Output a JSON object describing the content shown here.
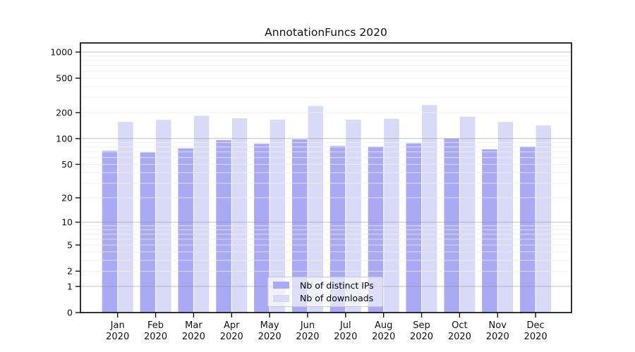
{
  "chart_data": {
    "type": "bar",
    "title": "AnnotationFuncs 2020",
    "x_months": [
      "Jan",
      "Feb",
      "Mar",
      "Apr",
      "May",
      "Jun",
      "Jul",
      "Aug",
      "Sep",
      "Oct",
      "Nov",
      "Dec"
    ],
    "x_year": "2020",
    "series": [
      {
        "name": "Nb of distinct IPs",
        "color": "#a9a9f4",
        "values": [
          72,
          69,
          77,
          96,
          87,
          98,
          82,
          81,
          88,
          100,
          75,
          81
        ]
      },
      {
        "name": "Nb of downloads",
        "color": "#d9d9f8",
        "values": [
          156,
          165,
          184,
          172,
          166,
          239,
          166,
          170,
          245,
          180,
          156,
          142
        ]
      }
    ],
    "y_ticks": [
      0,
      1,
      2,
      5,
      10,
      20,
      50,
      100,
      200,
      500,
      1000
    ],
    "y_scale": "symlog",
    "ylim": [
      0,
      1400
    ],
    "grid": true,
    "legend_position": "inside-bottom-center",
    "colors": {
      "major_gridline": "#b9b9b9",
      "minor_gridline": "#ededed",
      "axis": "#000000",
      "text": "#111111"
    }
  }
}
